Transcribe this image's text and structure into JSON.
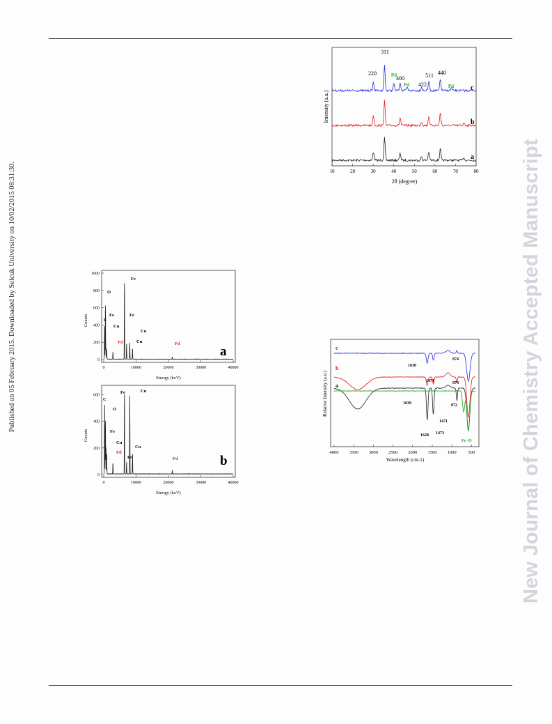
{
  "header_rule": "",
  "side_text_left": "Published on 05 February 2015. Downloaded by Selcuk University on 10/02/2015 08:31:30.",
  "side_text_right": "New Journal of Chemistry Accepted Manuscript",
  "colors": {
    "black": "#222222",
    "red": "#e02020",
    "blue": "#2828e0",
    "green": "#1aa51a",
    "pd_label_red": "#e8261c",
    "pd_label_green": "#22b022"
  },
  "chart_data": [
    {
      "type": "line",
      "id": "xrd",
      "xlabel": "2θ (degree)",
      "ylabel": "Intensity (a.u.)",
      "xlim": [
        10,
        80
      ],
      "xticks": [
        "10",
        "20",
        "30",
        "40",
        "50",
        "60",
        "70",
        "80"
      ],
      "series": [
        {
          "name": "a",
          "peaks": [
            [
              30.1,
              12
            ],
            [
              35.5,
              32
            ],
            [
              43.1,
              10
            ],
            [
              53.5,
              5
            ],
            [
              57.0,
              12
            ],
            [
              62.6,
              16
            ],
            [
              74,
              4
            ]
          ]
        },
        {
          "name": "b",
          "peaks": [
            [
              30.1,
              14
            ],
            [
              35.5,
              36
            ],
            [
              43.1,
              11
            ],
            [
              53.5,
              5
            ],
            [
              57.0,
              13
            ],
            [
              62.6,
              18
            ],
            [
              74,
              4
            ]
          ]
        },
        {
          "name": "c",
          "peaks": [
            [
              30.1,
              12
            ],
            [
              35.5,
              36
            ],
            [
              40.0,
              10
            ],
            [
              43.1,
              12
            ],
            [
              46.5,
              4
            ],
            [
              53.5,
              5
            ],
            [
              57.0,
              12
            ],
            [
              62.6,
              16
            ],
            [
              68.0,
              4
            ]
          ]
        }
      ],
      "peak_labels": [
        "220",
        "311",
        "400",
        "422",
        "511",
        "440"
      ],
      "pd_labels": [
        "Pd",
        "Pd",
        "Pd"
      ],
      "curve_labels": [
        "a",
        "b",
        "c"
      ]
    },
    {
      "type": "line",
      "id": "edx-a",
      "xlabel": "Energy (keV)",
      "ylabel": "Counts",
      "xlim": [
        0,
        40000
      ],
      "ylim": [
        0,
        1000
      ],
      "xticks": [
        "0",
        "10000",
        "20000",
        "30000",
        "40000"
      ],
      "yticks": [
        "0",
        "200",
        "400",
        "600",
        "800",
        "1000"
      ],
      "panel_label": "a",
      "peaks": [
        [
          277,
          380
        ],
        [
          525,
          620
        ],
        [
          705,
          140
        ],
        [
          930,
          110
        ],
        [
          2840,
          80
        ],
        [
          6400,
          880
        ],
        [
          7060,
          180
        ],
        [
          8050,
          190
        ],
        [
          8900,
          120
        ],
        [
          21180,
          25
        ]
      ],
      "peak_labels": [
        "Fe",
        "O",
        "C",
        "Fe",
        "Cu",
        "Pd",
        "Fe",
        "Cu",
        "Cu",
        "Pd"
      ]
    },
    {
      "type": "line",
      "id": "edx-b",
      "xlabel": "Energy (keV)",
      "ylabel": "Counts",
      "xlim": [
        0,
        40000
      ],
      "ylim": [
        0,
        650
      ],
      "xticks": [
        "0",
        "10000",
        "20000",
        "30000",
        "40000"
      ],
      "yticks": [
        "0",
        "200",
        "400",
        "600"
      ],
      "panel_label": "b",
      "peaks": [
        [
          277,
          520
        ],
        [
          525,
          400
        ],
        [
          705,
          200
        ],
        [
          930,
          150
        ],
        [
          2840,
          80
        ],
        [
          6400,
          600
        ],
        [
          7060,
          90
        ],
        [
          8050,
          590
        ],
        [
          8900,
          150
        ],
        [
          21180,
          25
        ]
      ],
      "peak_labels": [
        "C",
        "O",
        "Fe",
        "Cu",
        "Pd",
        "Fe",
        "Fe",
        "Cu",
        "Cu",
        "Pd"
      ]
    },
    {
      "type": "line",
      "id": "ftir",
      "xlabel": "Wavelength (cm-1)",
      "ylabel": "Relative Intensity (a.u.)",
      "xlim": [
        4000,
        400
      ],
      "xticks": [
        "4000",
        "3500",
        "3000",
        "2500",
        "2000",
        "1500",
        "1000",
        "500"
      ],
      "curve_labels": [
        "c",
        "b",
        "a"
      ],
      "annotations": [
        "1630",
        "1471",
        "874",
        "874",
        "1630",
        "872",
        "1471",
        "1628",
        "1473",
        "Fe -O"
      ]
    }
  ]
}
